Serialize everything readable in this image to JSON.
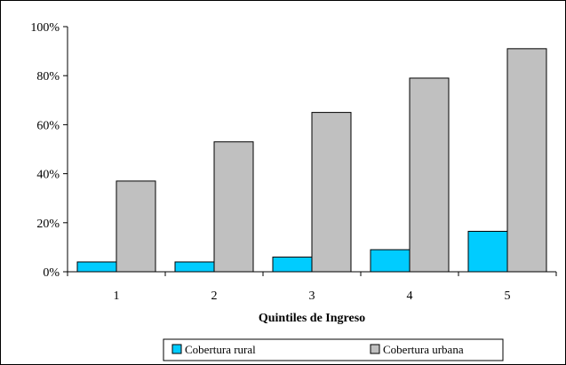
{
  "chart_data": {
    "type": "bar",
    "title": "",
    "xlabel": "Quintiles de Ingreso",
    "ylabel": "",
    "categories": [
      "1",
      "2",
      "3",
      "4",
      "5"
    ],
    "series": [
      {
        "name": "Cobertura rural",
        "values": [
          4,
          4,
          6,
          9,
          16.5
        ],
        "color": "#00ccff"
      },
      {
        "name": "Cobertura urbana",
        "values": [
          37,
          53,
          65,
          79,
          91
        ],
        "color": "#c0c0c0"
      }
    ],
    "ylim": [
      0,
      100
    ],
    "yticks": [
      0,
      20,
      40,
      60,
      80,
      100
    ],
    "ytick_labels": [
      "0%",
      "20%",
      "40%",
      "60%",
      "80%",
      "100%"
    ],
    "grid": false,
    "legend_position": "bottom"
  }
}
